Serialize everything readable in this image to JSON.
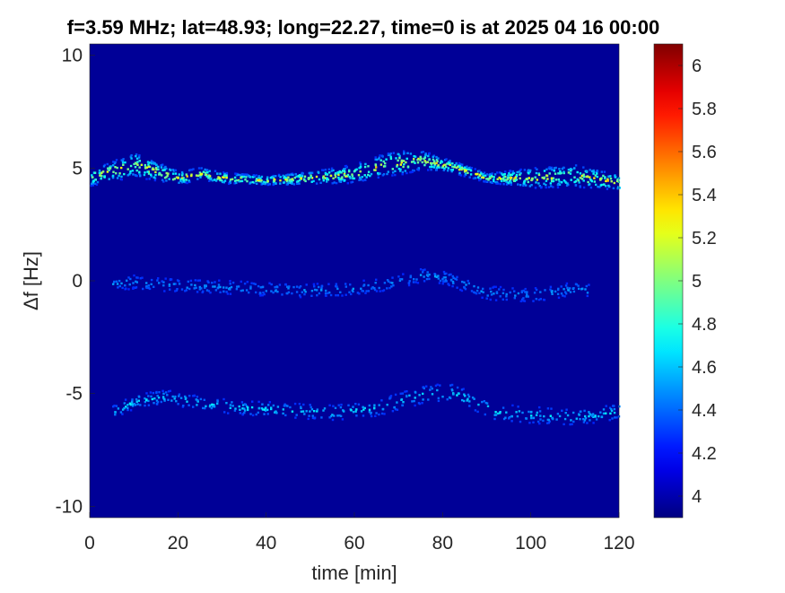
{
  "chart_data": {
    "type": "heatmap",
    "title": "f=3.59 MHz;  lat=48.93; long=22.27, time=0 is at 2025 04 16 00:00",
    "xlabel": "time [min]",
    "ylabel": "Δf [Hz]",
    "xlim": [
      0,
      120
    ],
    "ylim": [
      -10.5,
      10.5
    ],
    "xticks": [
      0,
      20,
      40,
      60,
      80,
      100,
      120
    ],
    "yticks": [
      -10,
      -5,
      0,
      5,
      10
    ],
    "colorbar": {
      "colormap": "jet",
      "clim": [
        3.9,
        6.1
      ],
      "ticks": [
        4,
        4.2,
        4.4,
        4.6,
        4.8,
        5,
        5.2,
        5.4,
        5.6,
        5.8,
        6
      ]
    },
    "background_value": 3.95,
    "traces": [
      {
        "name": "",
        "center_points": [
          [
            0,
            4.6
          ],
          [
            5,
            4.9
          ],
          [
            10,
            5.2
          ],
          [
            15,
            4.9
          ],
          [
            20,
            4.6
          ],
          [
            25,
            4.8
          ],
          [
            30,
            4.6
          ],
          [
            40,
            4.5
          ],
          [
            50,
            4.6
          ],
          [
            60,
            4.8
          ],
          [
            67,
            5.2
          ],
          [
            75,
            5.4
          ],
          [
            82,
            5.1
          ],
          [
            90,
            4.6
          ],
          [
            100,
            4.6
          ],
          [
            110,
            4.7
          ],
          [
            120,
            4.4
          ]
        ],
        "halfwidth_hz": [
          [
            0,
            0.35
          ],
          [
            10,
            0.55
          ],
          [
            20,
            0.3
          ],
          [
            40,
            0.2
          ],
          [
            55,
            0.35
          ],
          [
            70,
            0.55
          ],
          [
            80,
            0.3
          ],
          [
            90,
            0.2
          ],
          [
            100,
            0.45
          ],
          [
            110,
            0.5
          ],
          [
            120,
            0.35
          ]
        ],
        "peak_value": 5.45
      },
      {
        "name": "",
        "center_points": [
          [
            5,
            -0.1
          ],
          [
            10,
            0.0
          ],
          [
            12,
            -0.1
          ],
          [
            50,
            -0.4
          ],
          [
            60,
            -0.3
          ],
          [
            70,
            0.0
          ],
          [
            75,
            0.3
          ],
          [
            80,
            0.2
          ],
          [
            90,
            -0.5
          ],
          [
            100,
            -0.6
          ],
          [
            110,
            -0.3
          ],
          [
            113,
            -0.4
          ]
        ],
        "halfwidth_hz": [
          [
            0,
            0.3
          ],
          [
            120,
            0.3
          ]
        ],
        "peak_value": 4.55
      },
      {
        "name": "",
        "center_points": [
          [
            5,
            -5.8
          ],
          [
            10,
            -5.3
          ],
          [
            17,
            -5.1
          ],
          [
            25,
            -5.4
          ],
          [
            35,
            -5.6
          ],
          [
            45,
            -5.7
          ],
          [
            55,
            -5.8
          ],
          [
            65,
            -5.6
          ],
          [
            75,
            -5.0
          ],
          [
            82,
            -4.9
          ],
          [
            92,
            -5.8
          ],
          [
            100,
            -5.9
          ],
          [
            110,
            -6.0
          ],
          [
            118,
            -5.8
          ],
          [
            120,
            -5.7
          ]
        ],
        "halfwidth_hz": [
          [
            0,
            0.3
          ],
          [
            60,
            0.35
          ],
          [
            75,
            0.4
          ],
          [
            120,
            0.35
          ]
        ],
        "peak_value": 4.75
      }
    ]
  }
}
